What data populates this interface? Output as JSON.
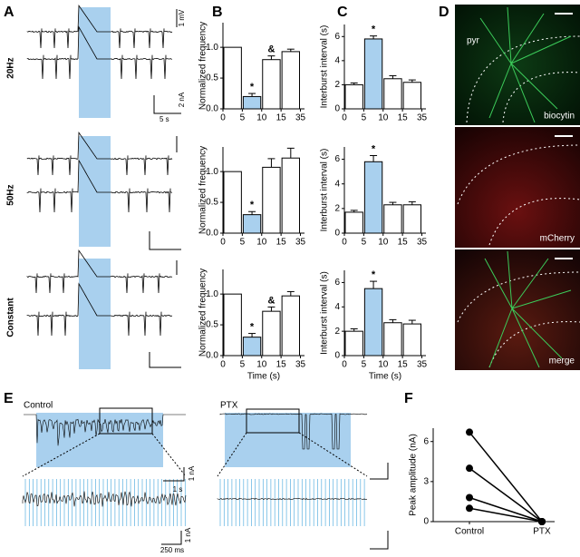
{
  "panel_labels": [
    "A",
    "B",
    "C",
    "D",
    "E",
    "F"
  ],
  "panel_a": {
    "rows": [
      "20Hz",
      "50Hz",
      "Constant"
    ],
    "scale_labels": [
      "1 mV",
      "2 nA",
      "5 s"
    ]
  },
  "panel_d": {
    "labels": [
      "pyr",
      "biocytin",
      "mCherry",
      "merge"
    ]
  },
  "panel_e": {
    "conditions": [
      "Control",
      "PTX"
    ],
    "scale_labels": [
      "1 s",
      "1 nA",
      "250 ms",
      "1 nA"
    ]
  },
  "chart_data": [
    {
      "type": "bar",
      "ylabel": "Normalized frequency",
      "xticks": [
        0,
        5,
        10,
        15,
        35
      ],
      "ylim": [
        0,
        1.4
      ],
      "yticks": [
        {
          "value": 0,
          "label": "0.0"
        },
        {
          "value": 0.5,
          "label": "0.5"
        },
        {
          "value": 1,
          "label": "1.0"
        }
      ],
      "values": [
        1,
        0.2,
        0.8,
        0.93
      ],
      "errors": [
        0,
        0.05,
        0.06,
        0.04
      ],
      "colors": [
        "#ffffff",
        "#a9d0ee",
        "#ffffff",
        "#ffffff"
      ],
      "annotations": [
        null,
        "*",
        "&",
        null
      ]
    },
    {
      "type": "bar",
      "ylabel": "Normalized frequency",
      "xticks": [
        0,
        5,
        10,
        15,
        35
      ],
      "ylim": [
        0,
        1.4
      ],
      "yticks": [
        {
          "value": 0,
          "label": "0.0"
        },
        {
          "value": 0.5,
          "label": "0.5"
        },
        {
          "value": 1,
          "label": "1.0"
        }
      ],
      "values": [
        1,
        0.3,
        1.07,
        1.22
      ],
      "errors": [
        0,
        0.05,
        0.14,
        0.16
      ],
      "colors": [
        "#ffffff",
        "#a9d0ee",
        "#ffffff",
        "#ffffff"
      ],
      "annotations": [
        null,
        "*",
        null,
        null
      ]
    },
    {
      "type": "bar",
      "ylabel": "Normalized frequency",
      "xlabel": "Time (s)",
      "xticks": [
        0,
        5,
        10,
        15,
        35
      ],
      "ylim": [
        0,
        1.4
      ],
      "yticks": [
        {
          "value": 0,
          "label": "0.0"
        },
        {
          "value": 0.5,
          "label": "0.5"
        },
        {
          "value": 1,
          "label": "1.0"
        }
      ],
      "values": [
        1,
        0.3,
        0.72,
        0.97
      ],
      "errors": [
        0,
        0.06,
        0.07,
        0.07
      ],
      "colors": [
        "#ffffff",
        "#a9d0ee",
        "#ffffff",
        "#ffffff"
      ],
      "annotations": [
        null,
        "*",
        "&",
        null
      ]
    },
    {
      "type": "bar",
      "ylabel": "Interburst interval (s)",
      "xticks": [
        0,
        5,
        10,
        15,
        35
      ],
      "ylim": [
        0,
        7
      ],
      "yticks": [
        0,
        2,
        4,
        6
      ],
      "values": [
        2.0,
        5.8,
        2.5,
        2.2
      ],
      "errors": [
        0.15,
        0.25,
        0.25,
        0.2
      ],
      "colors": [
        "#ffffff",
        "#a9d0ee",
        "#ffffff",
        "#ffffff"
      ],
      "annotations": [
        null,
        "*",
        null,
        null
      ]
    },
    {
      "type": "bar",
      "ylabel": "Interburst interval (s)",
      "xticks": [
        0,
        5,
        10,
        15,
        35
      ],
      "ylim": [
        0,
        7
      ],
      "yticks": [
        0,
        2,
        4,
        6
      ],
      "values": [
        1.7,
        5.8,
        2.3,
        2.3
      ],
      "errors": [
        0.15,
        0.5,
        0.2,
        0.25
      ],
      "colors": [
        "#ffffff",
        "#a9d0ee",
        "#ffffff",
        "#ffffff"
      ],
      "annotations": [
        null,
        "*",
        null,
        null
      ]
    },
    {
      "type": "bar",
      "ylabel": "Interburst interval (s)",
      "xlabel": "Time (s)",
      "xticks": [
        0,
        5,
        10,
        15,
        35
      ],
      "ylim": [
        0,
        7
      ],
      "yticks": [
        0,
        2,
        4,
        6
      ],
      "values": [
        2.0,
        5.5,
        2.7,
        2.6
      ],
      "errors": [
        0.2,
        0.6,
        0.25,
        0.3
      ],
      "colors": [
        "#ffffff",
        "#a9d0ee",
        "#ffffff",
        "#ffffff"
      ],
      "annotations": [
        null,
        "*",
        null,
        null
      ]
    },
    {
      "type": "line",
      "ylabel": "Peak amplitude (nA)",
      "categories": [
        "Control",
        "PTX"
      ],
      "ylim": [
        0,
        7
      ],
      "yticks": [
        0,
        3,
        6
      ],
      "color": "#000000",
      "series": [
        {
          "values": [
            6.7,
            0
          ]
        },
        {
          "values": [
            4.0,
            0
          ]
        },
        {
          "values": [
            1.8,
            0
          ]
        },
        {
          "values": [
            1.0,
            0
          ]
        }
      ]
    }
  ]
}
